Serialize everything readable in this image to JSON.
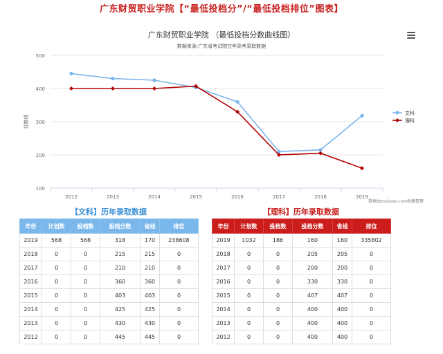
{
  "page_title": "广东财贸职业学院【“最低投档分”/“最低投档排位”图表】",
  "credit": "数据由zexiaoe.com收集整理",
  "chart_data": {
    "type": "line",
    "title": "广东财贸职业学院 （最低投档分数曲线图）",
    "subtitle": "数据来源:广东省考试院往年高考录取数据",
    "xlabel": "",
    "ylabel": "分数线",
    "categories": [
      "2012",
      "2013",
      "2014",
      "2015",
      "2016",
      "2017",
      "2018",
      "2019"
    ],
    "ylim": [
      100,
      500
    ],
    "yticks": [
      "100",
      "200",
      "300",
      "400",
      "500"
    ],
    "legend_position": "right",
    "grid": true,
    "series": [
      {
        "name": "文科",
        "color": "#7cb5ec",
        "values": [
          445,
          430,
          425,
          403,
          360,
          210,
          215,
          318
        ]
      },
      {
        "name": "理科",
        "color": "#b30000",
        "values": [
          400,
          400,
          400,
          407,
          330,
          200,
          205,
          160
        ]
      }
    ]
  },
  "tables": {
    "wenke": {
      "title": "【文科】历年录取数据",
      "headers": [
        "年份",
        "计划数",
        "投档数",
        "投档分数",
        "省线",
        "排位"
      ],
      "rows": [
        [
          "2019",
          "568",
          "568",
          "318",
          "170",
          "238608"
        ],
        [
          "2018",
          "0",
          "0",
          "215",
          "215",
          "0"
        ],
        [
          "2017",
          "0",
          "0",
          "210",
          "210",
          "0"
        ],
        [
          "2016",
          "0",
          "0",
          "360",
          "360",
          "0"
        ],
        [
          "2015",
          "0",
          "0",
          "403",
          "403",
          "0"
        ],
        [
          "2014",
          "0",
          "0",
          "425",
          "425",
          "0"
        ],
        [
          "2013",
          "0",
          "0",
          "430",
          "430",
          "0"
        ],
        [
          "2012",
          "0",
          "0",
          "445",
          "445",
          "0"
        ]
      ]
    },
    "like": {
      "title": "【理科】历年录取数据",
      "headers": [
        "年份",
        "计划数",
        "投档数",
        "投档分数",
        "省线",
        "排位"
      ],
      "rows": [
        [
          "2019",
          "1032",
          "186",
          "160",
          "160",
          "335802"
        ],
        [
          "2018",
          "0",
          "0",
          "205",
          "205",
          "0"
        ],
        [
          "2017",
          "0",
          "0",
          "200",
          "200",
          "0"
        ],
        [
          "2016",
          "0",
          "0",
          "330",
          "330",
          "0"
        ],
        [
          "2015",
          "0",
          "0",
          "407",
          "407",
          "0"
        ],
        [
          "2014",
          "0",
          "0",
          "400",
          "400",
          "0"
        ],
        [
          "2013",
          "0",
          "0",
          "400",
          "400",
          "0"
        ],
        [
          "2012",
          "0",
          "0",
          "400",
          "400",
          "0"
        ]
      ]
    }
  }
}
